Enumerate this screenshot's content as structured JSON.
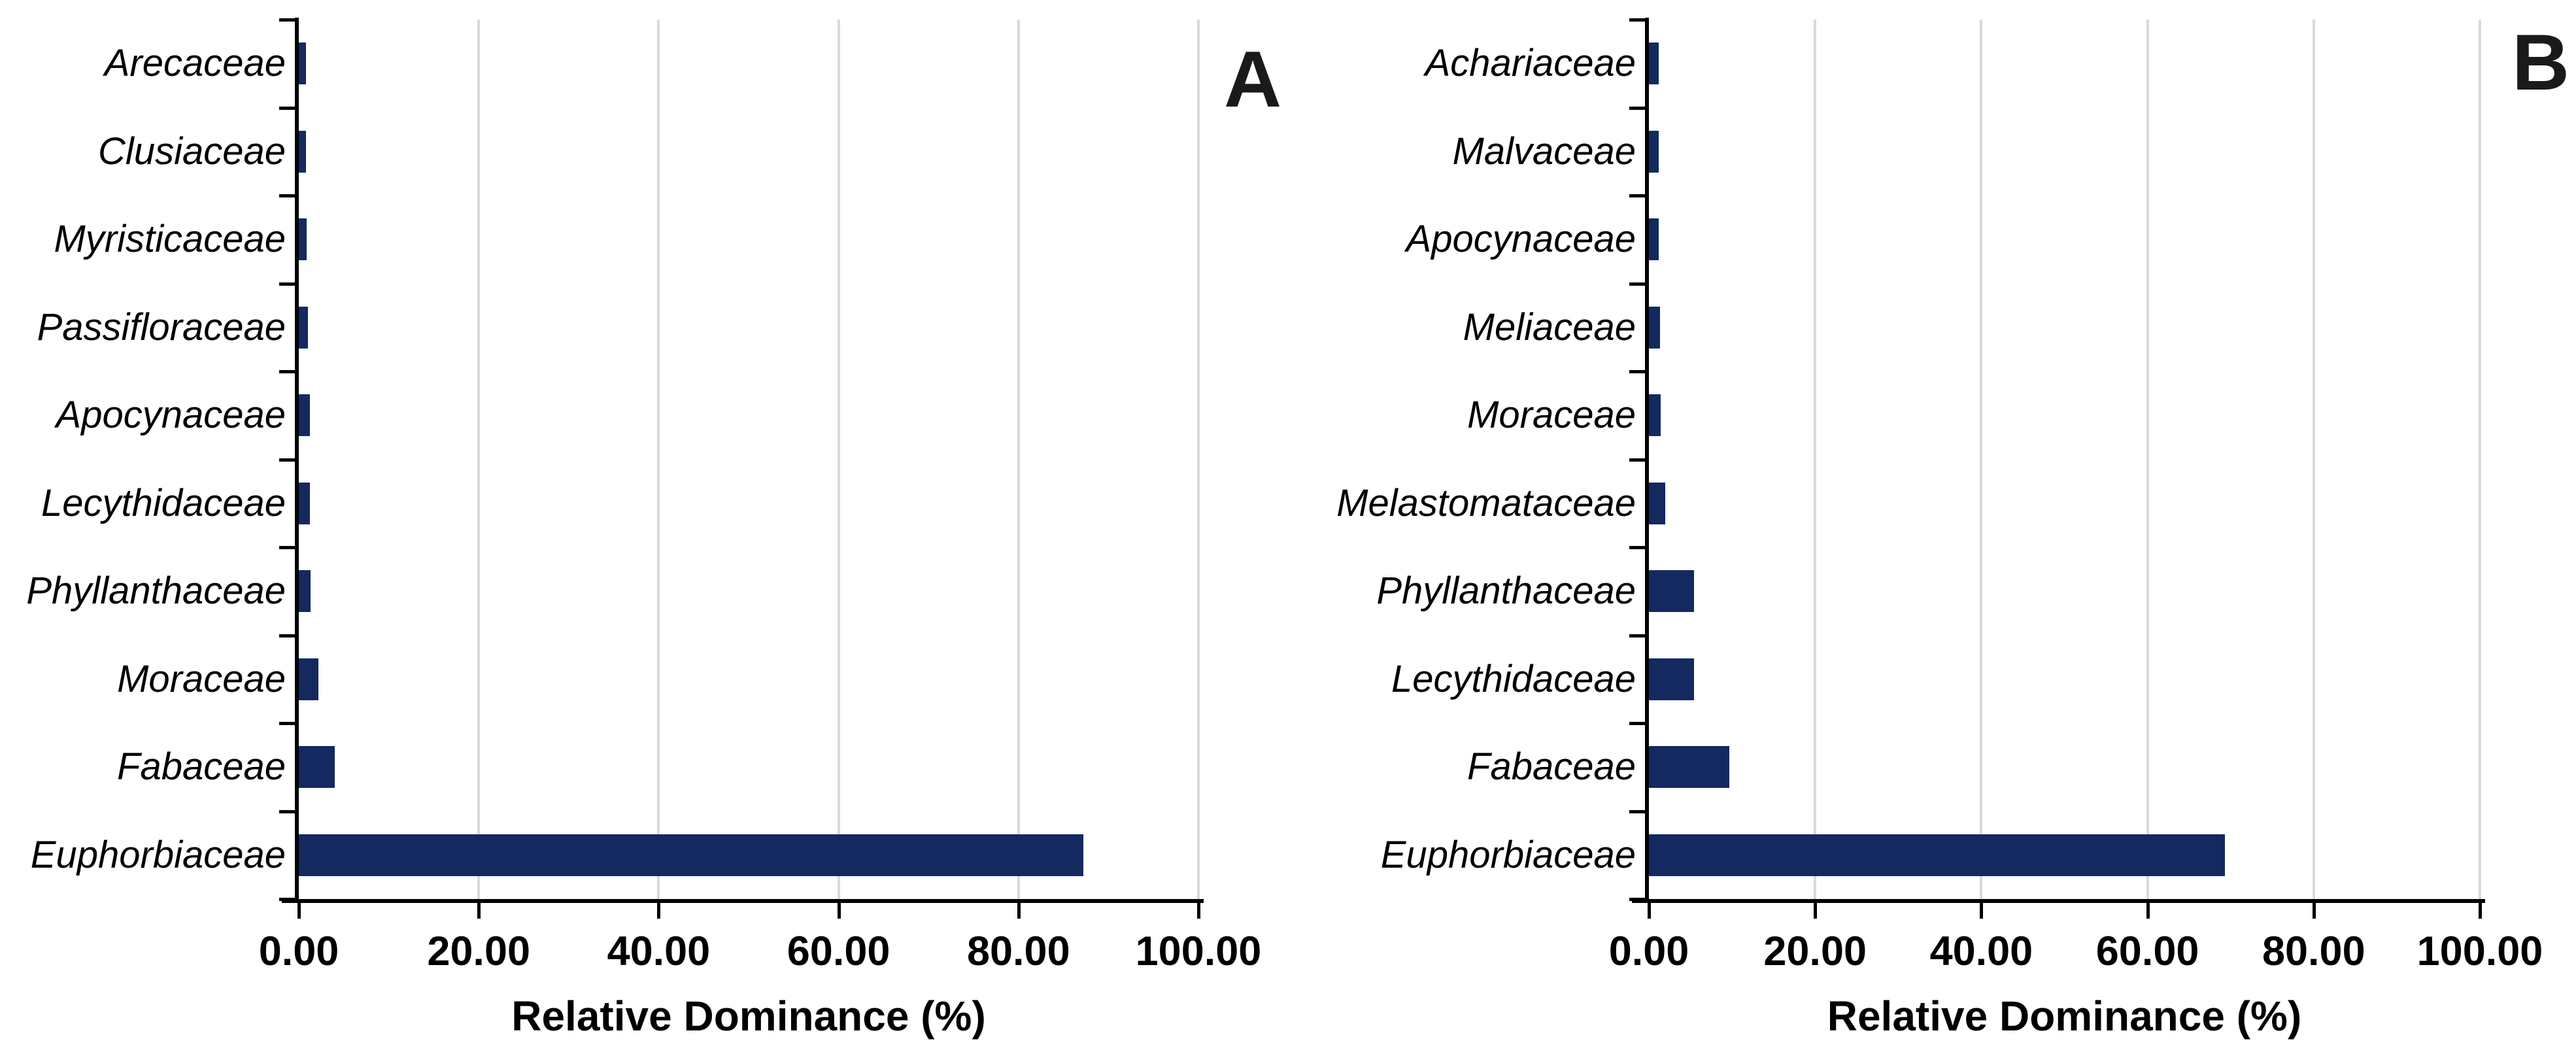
{
  "colors": {
    "bar": "#132960",
    "gridline": "#d9d9d9",
    "axis": "#000000",
    "text": "#000000"
  },
  "chart_data": [
    {
      "type": "bar",
      "orientation": "horizontal",
      "panel": "A",
      "categories": [
        "Arecaceae",
        "Clusiaceae",
        "Myristicaceae",
        "Passifloraceae",
        "Apocynaceae",
        "Lecythidaceae",
        "Phyllanthaceae",
        "Moraceae",
        "Fabaceae",
        "Euphorbiaceae"
      ],
      "values": [
        0.8,
        0.8,
        0.9,
        1.0,
        1.2,
        1.2,
        1.3,
        2.2,
        4.0,
        87.2
      ],
      "title": "",
      "xlabel": "Relative Dominance (%)",
      "ylabel": "",
      "xlim": [
        0,
        100
      ],
      "xticks": [
        "0.00",
        "20.00",
        "40.00",
        "60.00",
        "80.00",
        "100.00"
      ],
      "xtick_values": [
        0,
        20,
        40,
        60,
        80,
        100
      ],
      "grid": true,
      "legend": false
    },
    {
      "type": "bar",
      "orientation": "horizontal",
      "panel": "B",
      "categories": [
        "Achariaceae",
        "Malvaceae",
        "Apocynaceae",
        "Meliaceae",
        "Moraceae",
        "Melastomataceae",
        "Phyllanthaceae",
        "Lecythidaceae",
        "Fabaceae",
        "Euphorbiaceae"
      ],
      "values": [
        1.2,
        1.2,
        1.2,
        1.3,
        1.4,
        2.0,
        5.4,
        5.4,
        9.7,
        69.3
      ],
      "title": "",
      "xlabel": "Relative Dominance (%)",
      "ylabel": "",
      "xlim": [
        0,
        100
      ],
      "xticks": [
        "0.00",
        "20.00",
        "40.00",
        "60.00",
        "80.00",
        "100.00"
      ],
      "xtick_values": [
        0,
        20,
        40,
        60,
        80,
        100
      ],
      "grid": true,
      "legend": false
    }
  ]
}
